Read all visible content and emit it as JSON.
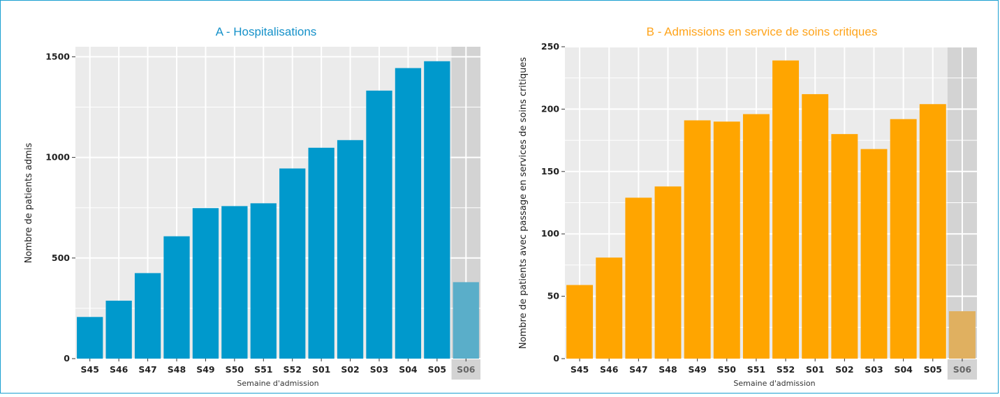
{
  "colors": {
    "frame": "#1a9fd1",
    "panel_bg": "#ebebeb",
    "grid": "#ffffff",
    "shade": "#d3d3d3"
  },
  "chart_data": [
    {
      "type": "bar",
      "title": "A - Hospitalisations",
      "title_color": "#1591c9",
      "xlabel": "Semaine d'admission",
      "ylabel": "Nombre de patients admis",
      "categories": [
        "S45",
        "S46",
        "S47",
        "S48",
        "S49",
        "S50",
        "S51",
        "S52",
        "S01",
        "S02",
        "S03",
        "S04",
        "S05",
        "S06"
      ],
      "values": [
        207,
        288,
        425,
        608,
        748,
        758,
        772,
        945,
        1048,
        1086,
        1332,
        1444,
        1478,
        380
      ],
      "yticks": [
        0,
        500,
        1000,
        1500
      ],
      "ylim": [
        0,
        1550
      ],
      "bar_color": "#0099cc",
      "partial_bar_color": "#5aaec9",
      "partial_category": "S06",
      "grid": true
    },
    {
      "type": "bar",
      "title": "B - Admissions en service de soins critiques",
      "title_color": "#ffa41b",
      "xlabel": "Semaine d'admission",
      "ylabel": "Nombre de patients avec passage en services de soins critiques",
      "categories": [
        "S45",
        "S46",
        "S47",
        "S48",
        "S49",
        "S50",
        "S51",
        "S52",
        "S01",
        "S02",
        "S03",
        "S04",
        "S05",
        "S06"
      ],
      "values": [
        59,
        81,
        129,
        138,
        191,
        190,
        196,
        239,
        212,
        180,
        168,
        192,
        204,
        38
      ],
      "yticks": [
        0,
        50,
        100,
        150,
        200,
        250
      ],
      "ylim": [
        0,
        250
      ],
      "bar_color": "#ffa500",
      "partial_bar_color": "#e0b060",
      "partial_category": "S06",
      "grid": true
    }
  ]
}
